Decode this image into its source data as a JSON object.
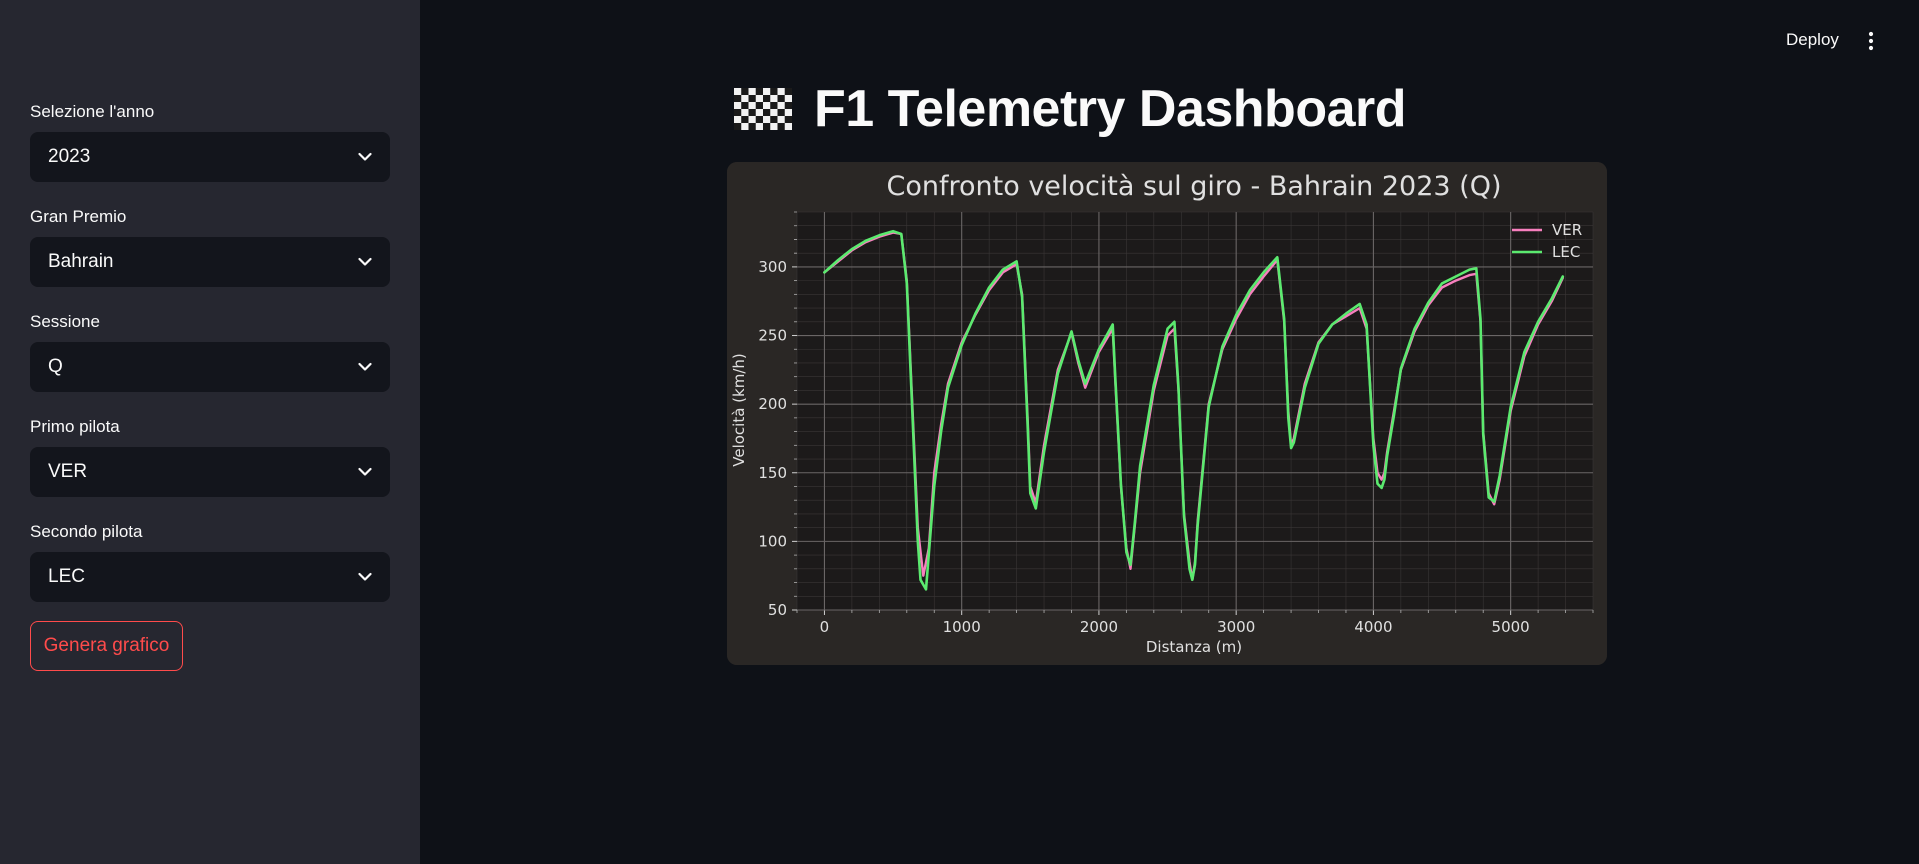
{
  "sidebar": {
    "fields": [
      {
        "label": "Selezione l'anno",
        "value": "2023"
      },
      {
        "label": "Gran Premio",
        "value": "Bahrain"
      },
      {
        "label": "Sessione",
        "value": "Q"
      },
      {
        "label": "Primo pilota",
        "value": "VER"
      },
      {
        "label": "Secondo pilota",
        "value": "LEC"
      }
    ],
    "generate_label": "Genera grafico"
  },
  "header": {
    "deploy_label": "Deploy",
    "menu_icon": "kebab-menu-icon"
  },
  "main": {
    "title_icon": "checkered-flag-icon",
    "title": "F1 Telemetry Dashboard"
  },
  "colors": {
    "accent": "#ff4b4b",
    "ver": "#f77fbe",
    "lec": "#5bea6f",
    "chart_bg": "#2a2725",
    "plot_bg": "#1c1a1a"
  },
  "chart_data": {
    "type": "line",
    "title": "Confronto velocità sul giro - Bahrain 2023 (Q)",
    "xlabel": "Distanza (m)",
    "ylabel": "Velocità (km/h)",
    "xlim": [
      -200,
      5600
    ],
    "ylim": [
      50,
      340
    ],
    "xticks": [
      0,
      1000,
      2000,
      3000,
      4000,
      5000
    ],
    "yticks": [
      50,
      100,
      150,
      200,
      250,
      300
    ],
    "grid": true,
    "legend": "top-right",
    "series": [
      {
        "name": "VER",
        "x": [
          0,
          100,
          200,
          300,
          400,
          500,
          560,
          600,
          640,
          680,
          720,
          760,
          800,
          850,
          900,
          1000,
          1100,
          1200,
          1300,
          1400,
          1440,
          1480,
          1500,
          1540,
          1600,
          1700,
          1800,
          1850,
          1900,
          2000,
          2100,
          2120,
          2160,
          2200,
          2230,
          2260,
          2300,
          2400,
          2500,
          2550,
          2580,
          2620,
          2660,
          2680,
          2700,
          2720,
          2800,
          2900,
          3000,
          3100,
          3200,
          3300,
          3350,
          3380,
          3400,
          3420,
          3500,
          3600,
          3700,
          3800,
          3900,
          3950,
          4000,
          4030,
          4060,
          4080,
          4100,
          4150,
          4200,
          4300,
          4400,
          4500,
          4600,
          4700,
          4750,
          4780,
          4800,
          4840,
          4880,
          4920,
          5000,
          5100,
          5200,
          5300,
          5380
        ],
        "y": [
          296,
          304,
          312,
          318,
          322,
          325,
          324,
          290,
          200,
          110,
          75,
          95,
          150,
          185,
          215,
          245,
          265,
          283,
          296,
          302,
          280,
          190,
          140,
          128,
          170,
          225,
          252,
          230,
          212,
          238,
          255,
          215,
          140,
          95,
          80,
          110,
          150,
          210,
          250,
          255,
          210,
          120,
          85,
          72,
          85,
          115,
          200,
          240,
          262,
          280,
          293,
          305,
          260,
          195,
          170,
          175,
          215,
          245,
          258,
          264,
          270,
          255,
          175,
          150,
          145,
          150,
          165,
          195,
          225,
          253,
          272,
          285,
          290,
          294,
          295,
          260,
          180,
          135,
          127,
          145,
          195,
          235,
          258,
          275,
          292
        ]
      },
      {
        "name": "LEC",
        "x": [
          0,
          100,
          200,
          300,
          400,
          500,
          560,
          600,
          640,
          680,
          700,
          740,
          800,
          850,
          900,
          1000,
          1100,
          1200,
          1300,
          1400,
          1440,
          1480,
          1500,
          1540,
          1600,
          1700,
          1800,
          1850,
          1900,
          2000,
          2100,
          2120,
          2160,
          2200,
          2230,
          2260,
          2300,
          2400,
          2500,
          2550,
          2580,
          2620,
          2660,
          2680,
          2700,
          2720,
          2800,
          2900,
          3000,
          3100,
          3200,
          3300,
          3350,
          3380,
          3400,
          3420,
          3500,
          3600,
          3700,
          3800,
          3900,
          3950,
          4000,
          4030,
          4060,
          4080,
          4100,
          4150,
          4200,
          4300,
          4400,
          4500,
          4600,
          4700,
          4750,
          4780,
          4800,
          4840,
          4880,
          4920,
          5000,
          5100,
          5200,
          5300,
          5380
        ],
        "y": [
          296,
          305,
          313,
          319,
          323,
          326,
          324,
          288,
          195,
          100,
          72,
          65,
          140,
          180,
          212,
          243,
          266,
          285,
          298,
          304,
          278,
          185,
          135,
          124,
          165,
          222,
          253,
          232,
          215,
          240,
          258,
          218,
          142,
          92,
          83,
          112,
          155,
          214,
          255,
          260,
          212,
          118,
          80,
          72,
          83,
          112,
          198,
          242,
          265,
          283,
          296,
          307,
          262,
          190,
          168,
          172,
          212,
          244,
          258,
          266,
          273,
          258,
          170,
          142,
          139,
          145,
          162,
          192,
          226,
          255,
          274,
          288,
          293,
          298,
          299,
          262,
          178,
          132,
          129,
          148,
          198,
          238,
          260,
          277,
          293
        ]
      }
    ]
  }
}
